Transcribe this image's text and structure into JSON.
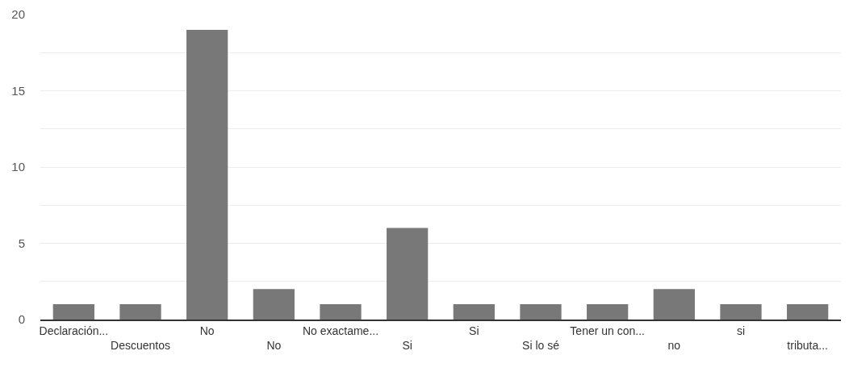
{
  "chart_data": {
    "type": "bar",
    "categories": [
      "Declaración...",
      "Descuentos",
      "No",
      "No",
      "No exactame...",
      "Si",
      "Si",
      "Si lo sé",
      "Tener un con...",
      "no",
      "si",
      "tributa..."
    ],
    "values": [
      1,
      1,
      19,
      2,
      1,
      6,
      1,
      1,
      1,
      2,
      1,
      1
    ],
    "color": "#787878",
    "ylim": [
      0,
      20
    ],
    "yticks": [
      0,
      {
        "value": 2.5,
        "label": null
      },
      5,
      {
        "value": 7.5,
        "label": null
      },
      10,
      {
        "value": 12.5,
        "label": null
      },
      15,
      {
        "value": 17.5,
        "label": null
      },
      20
    ],
    "grid": "y"
  }
}
